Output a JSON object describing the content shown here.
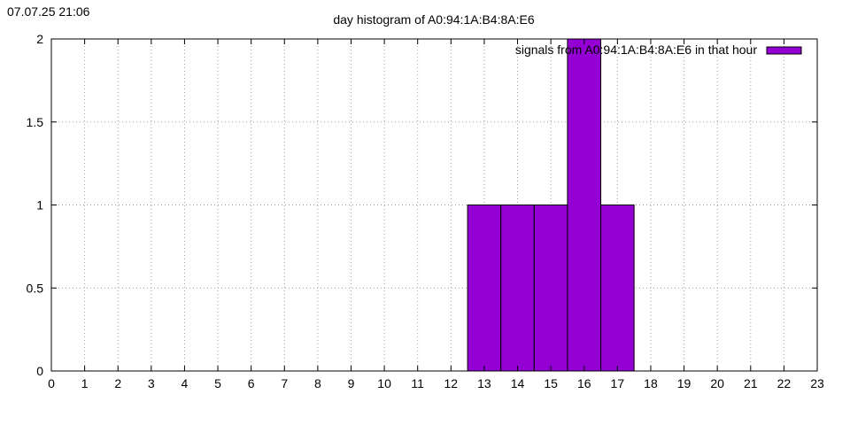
{
  "timestamp": "07.07.25 21:06",
  "chart_data": {
    "type": "bar",
    "title": "day histogram of A0:94:1A:B4:8A:E6",
    "xlabel": "",
    "ylabel": "",
    "xlim": [
      0,
      23
    ],
    "ylim": [
      0,
      2
    ],
    "x_ticks": [
      "0",
      "1",
      "2",
      "3",
      "4",
      "5",
      "6",
      "7",
      "8",
      "9",
      "10",
      "11",
      "12",
      "13",
      "14",
      "15",
      "16",
      "17",
      "18",
      "19",
      "20",
      "21",
      "22",
      "23"
    ],
    "y_ticks": [
      "0",
      "0.5",
      "1",
      "1.5",
      "2"
    ],
    "grid": true,
    "legend_position": "top-right",
    "categories": [
      13,
      14,
      15,
      16,
      17
    ],
    "series": [
      {
        "name": "signals from A0:94:1A:B4:8A:E6 in that hour",
        "values": [
          1,
          1,
          1,
          2,
          1
        ],
        "color": "#9400d3"
      }
    ]
  }
}
